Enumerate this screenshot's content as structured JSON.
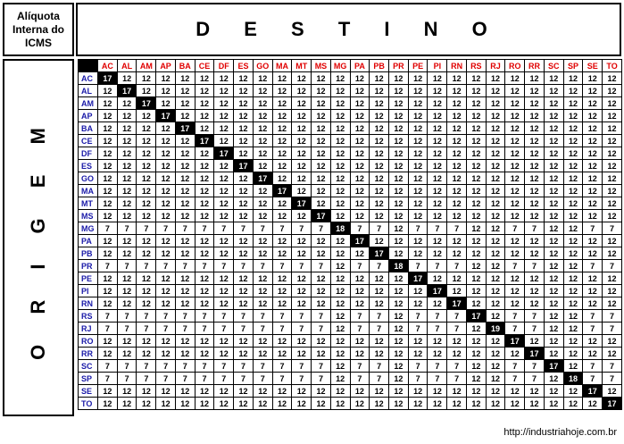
{
  "corner_label": [
    "Alíquota",
    "Interna do",
    "ICMS"
  ],
  "destination_title": "D E S T I N O",
  "origin_title": "O R I G E M",
  "columns": [
    "AC",
    "AL",
    "AM",
    "AP",
    "BA",
    "CE",
    "DF",
    "ES",
    "GO",
    "MA",
    "MT",
    "MS",
    "MG",
    "PA",
    "PB",
    "PR",
    "PE",
    "PI",
    "RN",
    "RS",
    "RJ",
    "RO",
    "RR",
    "SC",
    "SP",
    "SE",
    "TO"
  ],
  "rows": [
    {
      "state": "AC",
      "values": [
        17,
        12,
        12,
        12,
        12,
        12,
        12,
        12,
        12,
        12,
        12,
        12,
        12,
        12,
        12,
        12,
        12,
        12,
        12,
        12,
        12,
        12,
        12,
        12,
        12,
        12,
        12
      ]
    },
    {
      "state": "AL",
      "values": [
        12,
        17,
        12,
        12,
        12,
        12,
        12,
        12,
        12,
        12,
        12,
        12,
        12,
        12,
        12,
        12,
        12,
        12,
        12,
        12,
        12,
        12,
        12,
        12,
        12,
        12,
        12
      ]
    },
    {
      "state": "AM",
      "values": [
        12,
        12,
        17,
        12,
        12,
        12,
        12,
        12,
        12,
        12,
        12,
        12,
        12,
        12,
        12,
        12,
        12,
        12,
        12,
        12,
        12,
        12,
        12,
        12,
        12,
        12,
        12
      ]
    },
    {
      "state": "AP",
      "values": [
        12,
        12,
        12,
        17,
        12,
        12,
        12,
        12,
        12,
        12,
        12,
        12,
        12,
        12,
        12,
        12,
        12,
        12,
        12,
        12,
        12,
        12,
        12,
        12,
        12,
        12,
        12
      ]
    },
    {
      "state": "BA",
      "values": [
        12,
        12,
        12,
        12,
        17,
        12,
        12,
        12,
        12,
        12,
        12,
        12,
        12,
        12,
        12,
        12,
        12,
        12,
        12,
        12,
        12,
        12,
        12,
        12,
        12,
        12,
        12
      ]
    },
    {
      "state": "CE",
      "values": [
        12,
        12,
        12,
        12,
        12,
        17,
        12,
        12,
        12,
        12,
        12,
        12,
        12,
        12,
        12,
        12,
        12,
        12,
        12,
        12,
        12,
        12,
        12,
        12,
        12,
        12,
        12
      ]
    },
    {
      "state": "DF",
      "values": [
        12,
        12,
        12,
        12,
        12,
        12,
        17,
        12,
        12,
        12,
        12,
        12,
        12,
        12,
        12,
        12,
        12,
        12,
        12,
        12,
        12,
        12,
        12,
        12,
        12,
        12,
        12
      ]
    },
    {
      "state": "ES",
      "values": [
        12,
        12,
        12,
        12,
        12,
        12,
        12,
        17,
        12,
        12,
        12,
        12,
        12,
        12,
        12,
        12,
        12,
        12,
        12,
        12,
        12,
        12,
        12,
        12,
        12,
        12,
        12
      ]
    },
    {
      "state": "GO",
      "values": [
        12,
        12,
        12,
        12,
        12,
        12,
        12,
        12,
        17,
        12,
        12,
        12,
        12,
        12,
        12,
        12,
        12,
        12,
        12,
        12,
        12,
        12,
        12,
        12,
        12,
        12,
        12
      ]
    },
    {
      "state": "MA",
      "values": [
        12,
        12,
        12,
        12,
        12,
        12,
        12,
        12,
        12,
        17,
        12,
        12,
        12,
        12,
        12,
        12,
        12,
        12,
        12,
        12,
        12,
        12,
        12,
        12,
        12,
        12,
        12
      ]
    },
    {
      "state": "MT",
      "values": [
        12,
        12,
        12,
        12,
        12,
        12,
        12,
        12,
        12,
        12,
        17,
        12,
        12,
        12,
        12,
        12,
        12,
        12,
        12,
        12,
        12,
        12,
        12,
        12,
        12,
        12,
        12
      ]
    },
    {
      "state": "MS",
      "values": [
        12,
        12,
        12,
        12,
        12,
        12,
        12,
        12,
        12,
        12,
        12,
        17,
        12,
        12,
        12,
        12,
        12,
        12,
        12,
        12,
        12,
        12,
        12,
        12,
        12,
        12,
        12
      ]
    },
    {
      "state": "MG",
      "values": [
        7,
        7,
        7,
        7,
        7,
        7,
        7,
        7,
        7,
        7,
        7,
        7,
        18,
        7,
        7,
        12,
        7,
        7,
        7,
        12,
        12,
        7,
        7,
        12,
        12,
        7,
        7
      ]
    },
    {
      "state": "PA",
      "values": [
        12,
        12,
        12,
        12,
        12,
        12,
        12,
        12,
        12,
        12,
        12,
        12,
        12,
        17,
        12,
        12,
        12,
        12,
        12,
        12,
        12,
        12,
        12,
        12,
        12,
        12,
        12
      ]
    },
    {
      "state": "PB",
      "values": [
        12,
        12,
        12,
        12,
        12,
        12,
        12,
        12,
        12,
        12,
        12,
        12,
        12,
        12,
        17,
        12,
        12,
        12,
        12,
        12,
        12,
        12,
        12,
        12,
        12,
        12,
        12
      ]
    },
    {
      "state": "PR",
      "values": [
        7,
        7,
        7,
        7,
        7,
        7,
        7,
        7,
        7,
        7,
        7,
        7,
        12,
        7,
        7,
        18,
        7,
        7,
        7,
        12,
        12,
        7,
        7,
        12,
        12,
        7,
        7
      ]
    },
    {
      "state": "PE",
      "values": [
        12,
        12,
        12,
        12,
        12,
        12,
        12,
        12,
        12,
        12,
        12,
        12,
        12,
        12,
        12,
        12,
        17,
        12,
        12,
        12,
        12,
        12,
        12,
        12,
        12,
        12,
        12
      ]
    },
    {
      "state": "PI",
      "values": [
        12,
        12,
        12,
        12,
        12,
        12,
        12,
        12,
        12,
        12,
        12,
        12,
        12,
        12,
        12,
        12,
        12,
        17,
        12,
        12,
        12,
        12,
        12,
        12,
        12,
        12,
        12
      ]
    },
    {
      "state": "RN",
      "values": [
        12,
        12,
        12,
        12,
        12,
        12,
        12,
        12,
        12,
        12,
        12,
        12,
        12,
        12,
        12,
        12,
        12,
        12,
        17,
        12,
        12,
        12,
        12,
        12,
        12,
        12,
        12
      ]
    },
    {
      "state": "RS",
      "values": [
        7,
        7,
        7,
        7,
        7,
        7,
        7,
        7,
        7,
        7,
        7,
        7,
        12,
        7,
        7,
        12,
        7,
        7,
        7,
        17,
        12,
        7,
        7,
        12,
        12,
        7,
        7
      ]
    },
    {
      "state": "RJ",
      "values": [
        7,
        7,
        7,
        7,
        7,
        7,
        7,
        7,
        7,
        7,
        7,
        7,
        12,
        7,
        7,
        12,
        7,
        7,
        7,
        12,
        19,
        7,
        7,
        12,
        12,
        7,
        7
      ]
    },
    {
      "state": "RO",
      "values": [
        12,
        12,
        12,
        12,
        12,
        12,
        12,
        12,
        12,
        12,
        12,
        12,
        12,
        12,
        12,
        12,
        12,
        12,
        12,
        12,
        12,
        17,
        12,
        12,
        12,
        12,
        12
      ]
    },
    {
      "state": "RR",
      "values": [
        12,
        12,
        12,
        12,
        12,
        12,
        12,
        12,
        12,
        12,
        12,
        12,
        12,
        12,
        12,
        12,
        12,
        12,
        12,
        12,
        12,
        12,
        17,
        12,
        12,
        12,
        12
      ]
    },
    {
      "state": "SC",
      "values": [
        7,
        7,
        7,
        7,
        7,
        7,
        7,
        7,
        7,
        7,
        7,
        7,
        12,
        7,
        7,
        12,
        7,
        7,
        7,
        12,
        12,
        7,
        7,
        17,
        12,
        7,
        7
      ]
    },
    {
      "state": "SP",
      "values": [
        7,
        7,
        7,
        7,
        7,
        7,
        7,
        7,
        7,
        7,
        7,
        7,
        12,
        7,
        7,
        12,
        7,
        7,
        7,
        12,
        12,
        7,
        7,
        12,
        18,
        7,
        7
      ]
    },
    {
      "state": "SE",
      "values": [
        12,
        12,
        12,
        12,
        12,
        12,
        12,
        12,
        12,
        12,
        12,
        12,
        12,
        12,
        12,
        12,
        12,
        12,
        12,
        12,
        12,
        12,
        12,
        12,
        12,
        17,
        12
      ]
    },
    {
      "state": "TO",
      "values": [
        12,
        12,
        12,
        12,
        12,
        12,
        12,
        12,
        12,
        12,
        12,
        12,
        12,
        12,
        12,
        12,
        12,
        12,
        12,
        12,
        12,
        12,
        12,
        12,
        12,
        12,
        17
      ]
    }
  ],
  "footer": {
    "source_link": "http://industriahoje.com.br"
  }
}
